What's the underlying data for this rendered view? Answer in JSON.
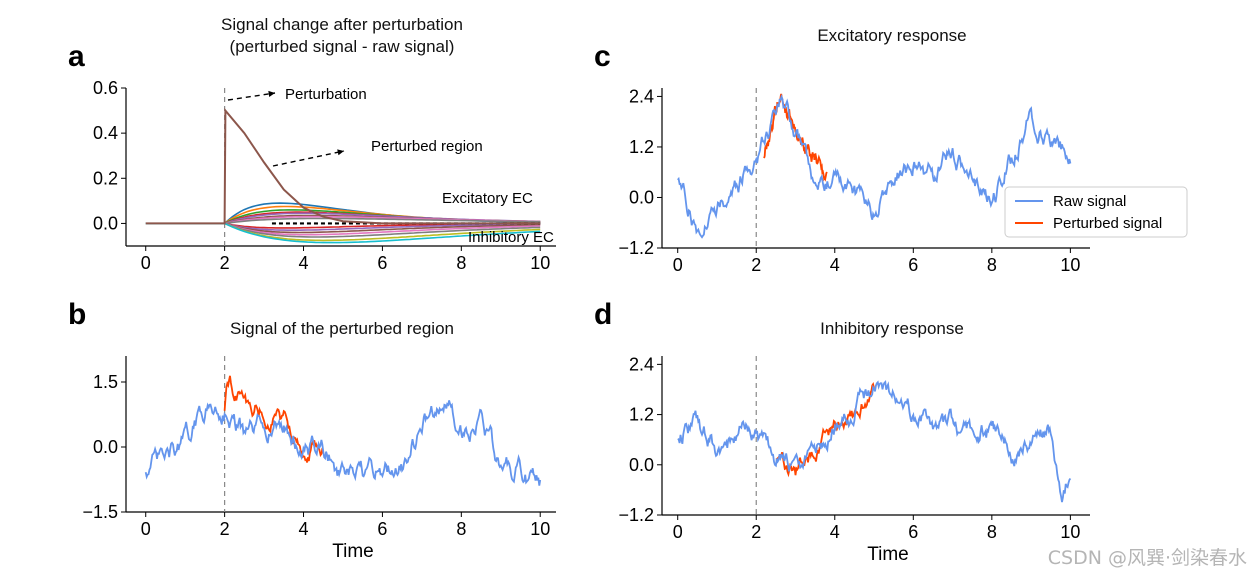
{
  "watermark": "CSDN @风巽·剑染春水",
  "chart_data": [
    {
      "panel_label": "a",
      "type": "line",
      "title": "Signal change after perturbation\n(perturbed signal - raw signal)",
      "xlabel": "",
      "ylabel": "",
      "xlim": [
        -0.5,
        10.4
      ],
      "ylim": [
        -0.1,
        0.6
      ],
      "xticks": [
        0,
        2,
        4,
        6,
        8,
        10
      ],
      "yticks": [
        0.0,
        0.2,
        0.4,
        0.6
      ],
      "perturbation_time": 2,
      "annotations": [
        "Perturbation",
        "Perturbed region",
        "Excitatory EC",
        "Inhibitory EC"
      ],
      "perturbed_region_curve": {
        "x": [
          0,
          2,
          2.02,
          2.5,
          3,
          3.5,
          4,
          4.5,
          5,
          6,
          8,
          10
        ],
        "y": [
          0,
          0,
          0.5,
          0.4,
          0.27,
          0.15,
          0.07,
          0.03,
          0.01,
          0,
          0,
          0
        ]
      },
      "excitatory_ec_peaks": [
        0.09,
        0.075,
        0.06,
        0.05,
        0.045,
        0.035,
        0.03,
        0.022
      ],
      "inhibitory_ec_troughs": [
        -0.02,
        -0.03,
        -0.04,
        -0.05,
        -0.06,
        -0.075,
        -0.085
      ],
      "colors": [
        "#1f77b4",
        "#ff7f0e",
        "#2ca02c",
        "#d62728",
        "#9467bd",
        "#8c564b",
        "#e377c2",
        "#7f7f7f",
        "#bcbd22",
        "#17becf"
      ]
    },
    {
      "panel_label": "b",
      "type": "line",
      "title": "Signal of the perturbed region",
      "xlabel": "Time",
      "ylabel": "",
      "xlim": [
        -0.5,
        10.4
      ],
      "ylim": [
        -1.5,
        2.1
      ],
      "xticks": [
        0,
        2,
        4,
        6,
        8,
        10
      ],
      "yticks": [
        -1.5,
        0.0,
        1.5
      ],
      "perturbation_time": 2,
      "series": [
        {
          "x": [
            0,
            0.5,
            1,
            1.5,
            2,
            2.5,
            3,
            3.5,
            4,
            4.5,
            5,
            5.5,
            6,
            6.5,
            7,
            7.5,
            8,
            8.5,
            9,
            9.5,
            10
          ],
          "values": [
            -0.5,
            -0.3,
            0.1,
            0.9,
            0.9,
            0.2,
            0.5,
            0.5,
            -0.1,
            0.0,
            -0.7,
            -0.7,
            -0.5,
            -0.4,
            0.5,
            1.1,
            0.4,
            0.7,
            -0.5,
            -0.6,
            -0.9
          ]
        },
        {
          "x": [
            2,
            2.05,
            2.3,
            2.6,
            3,
            3.5,
            4,
            4.5
          ],
          "values": [
            0.9,
            1.6,
            1.3,
            0.9,
            0.8,
            0.6,
            0.0,
            0.05
          ]
        }
      ],
      "colors": [
        "#6495ED",
        "#FF4500"
      ]
    },
    {
      "panel_label": "c",
      "type": "line",
      "title": "Excitatory response",
      "xlabel": "",
      "ylabel": "",
      "xlim": [
        -0.4,
        10.5
      ],
      "ylim": [
        -1.2,
        2.6
      ],
      "xticks": [
        0,
        2,
        4,
        6,
        8,
        10
      ],
      "yticks": [
        -1.2,
        0.0,
        1.2,
        2.4
      ],
      "perturbation_time": 2,
      "legend": [
        "Raw signal",
        "Perturbed signal"
      ],
      "legend_position": "center-right",
      "series": [
        {
          "name": "Raw signal",
          "x": [
            0,
            0.5,
            1,
            1.5,
            2,
            2.6,
            3,
            3.5,
            4,
            4.5,
            5,
            5.5,
            6,
            6.5,
            7,
            7.5,
            8,
            8.5,
            9,
            9.5,
            10
          ],
          "values": [
            0.5,
            -0.8,
            -0.1,
            0.2,
            0.9,
            2.4,
            1.6,
            0.5,
            0.5,
            0.2,
            -0.4,
            0.4,
            0.8,
            0.5,
            1.1,
            0.3,
            -0.1,
            0.9,
            1.9,
            1.4,
            1.0
          ]
        },
        {
          "name": "Perturbed signal",
          "x": [
            2.2,
            2.6,
            3,
            3.4,
            3.8
          ],
          "values": [
            1.0,
            2.5,
            1.7,
            1.0,
            0.6
          ]
        }
      ],
      "colors": [
        "#6495ED",
        "#FF4500"
      ]
    },
    {
      "panel_label": "d",
      "type": "line",
      "title": "Inhibitory response",
      "xlabel": "Time",
      "ylabel": "",
      "xlim": [
        -0.4,
        10.5
      ],
      "ylim": [
        -1.2,
        2.6
      ],
      "xticks": [
        0,
        2,
        4,
        6,
        8,
        10
      ],
      "yticks": [
        -1.2,
        0.0,
        1.2,
        2.4
      ],
      "perturbation_time": 2,
      "series": [
        {
          "x": [
            0,
            0.5,
            1,
            1.5,
            2,
            2.5,
            3,
            3.5,
            4,
            4.5,
            5,
            5.5,
            6,
            6.5,
            7,
            7.5,
            8,
            8.5,
            9,
            9.5,
            9.8,
            10
          ],
          "values": [
            0.7,
            1.1,
            0.3,
            0.7,
            0.8,
            0.2,
            -0.1,
            0.3,
            1.0,
            1.3,
            1.9,
            1.7,
            1.2,
            0.9,
            1.0,
            0.7,
            0.9,
            0.3,
            0.5,
            0.8,
            -0.6,
            -0.2
          ]
        },
        {
          "x": [
            2.5,
            3,
            3.5,
            4,
            4.5,
            5
          ],
          "values": [
            0.2,
            -0.2,
            0.2,
            0.9,
            1.2,
            1.8
          ]
        }
      ],
      "colors": [
        "#6495ED",
        "#FF4500"
      ]
    }
  ]
}
